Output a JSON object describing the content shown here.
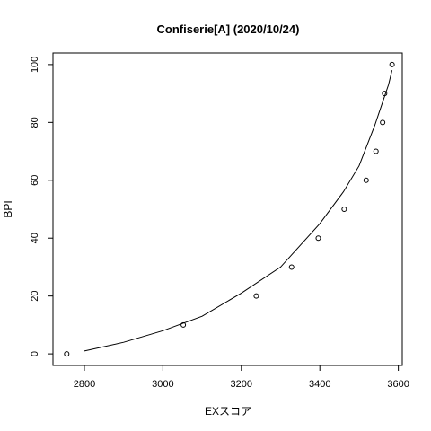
{
  "chart_data": {
    "type": "scatter",
    "title": "Confiserie[A] (2020/10/24)",
    "xlabel": "EXスコア",
    "ylabel": "BPI",
    "xlim": [
      2720,
      3610
    ],
    "ylim": [
      -4,
      104
    ],
    "x_ticks": [
      2800,
      3000,
      3200,
      3400,
      3600
    ],
    "y_ticks": [
      0,
      20,
      40,
      60,
      80,
      100
    ],
    "grid": false,
    "legend": "none",
    "points": [
      {
        "x": 2755,
        "y": 0
      },
      {
        "x": 3052,
        "y": 10
      },
      {
        "x": 3238,
        "y": 20
      },
      {
        "x": 3328,
        "y": 30
      },
      {
        "x": 3396,
        "y": 40
      },
      {
        "x": 3462,
        "y": 50
      },
      {
        "x": 3518,
        "y": 60
      },
      {
        "x": 3543,
        "y": 70
      },
      {
        "x": 3560,
        "y": 80
      },
      {
        "x": 3565,
        "y": 90
      },
      {
        "x": 3584,
        "y": 100
      }
    ],
    "curve": [
      {
        "x": 2800,
        "y": 1
      },
      {
        "x": 2900,
        "y": 4
      },
      {
        "x": 3000,
        "y": 8
      },
      {
        "x": 3100,
        "y": 13
      },
      {
        "x": 3200,
        "y": 21
      },
      {
        "x": 3300,
        "y": 30
      },
      {
        "x": 3400,
        "y": 45
      },
      {
        "x": 3460,
        "y": 56
      },
      {
        "x": 3500,
        "y": 65
      },
      {
        "x": 3540,
        "y": 79
      },
      {
        "x": 3560,
        "y": 87
      },
      {
        "x": 3575,
        "y": 93
      },
      {
        "x": 3584,
        "y": 98
      }
    ]
  }
}
